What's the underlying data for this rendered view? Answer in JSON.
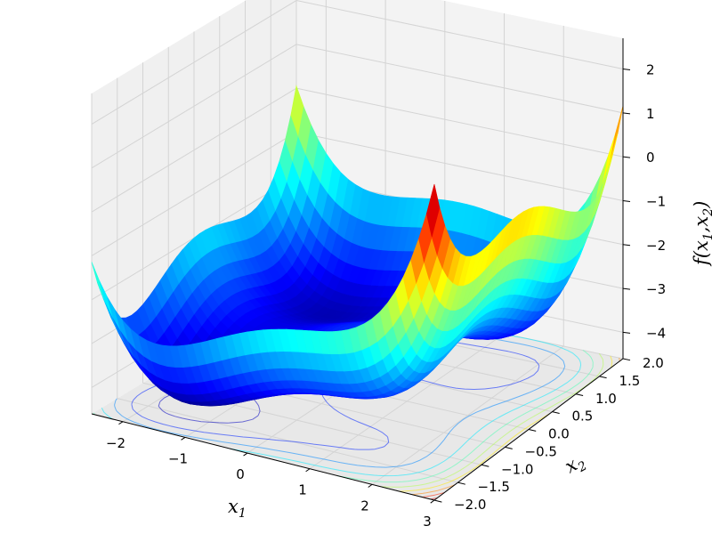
{
  "chart_data": {
    "type": "surface",
    "title": "",
    "xlabel": "x_1",
    "ylabel": "x_2",
    "zlabel": "f(x_1,x_2)",
    "xlim": [
      -2.5,
      3
    ],
    "ylim": [
      -2,
      2
    ],
    "zlim": [
      -4.6,
      2.7
    ],
    "x_ticks": [
      "-2",
      "-1",
      "0",
      "1",
      "2",
      "3"
    ],
    "y_ticks": [
      "-2.0",
      "-1.5",
      "-1.0",
      "-0.5",
      "0.0",
      "0.5",
      "1.0",
      "1.5",
      "2.0"
    ],
    "z_ticks": [
      "-4",
      "-3",
      "-2",
      "-1",
      "0",
      "1",
      "2"
    ],
    "colormap": "jet",
    "contour_projection": "bottom",
    "grid": true,
    "pane_color": "#ececec",
    "grid_color": "#d4d4d4"
  },
  "labels": {
    "xlabel_main": "x",
    "xlabel_sub": "1",
    "ylabel_main": "x",
    "ylabel_sub": "2",
    "zlabel_text": "f(x",
    "zlabel_sub1": "1",
    "zlabel_mid": ",x",
    "zlabel_sub2": "2",
    "zlabel_end": ")"
  }
}
